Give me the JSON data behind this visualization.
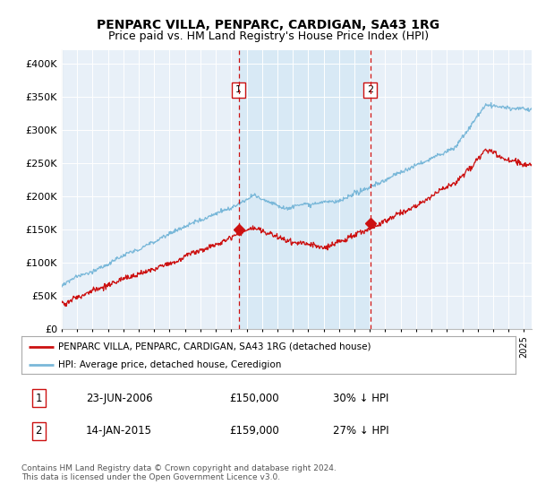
{
  "title": "PENPARC VILLA, PENPARC, CARDIGAN, SA43 1RG",
  "subtitle": "Price paid vs. HM Land Registry's House Price Index (HPI)",
  "xlim_start": 1995.0,
  "xlim_end": 2025.5,
  "ylim": [
    0,
    420000
  ],
  "yticks": [
    0,
    50000,
    100000,
    150000,
    200000,
    250000,
    300000,
    350000,
    400000
  ],
  "ytick_labels": [
    "£0",
    "£50K",
    "£100K",
    "£150K",
    "£200K",
    "£250K",
    "£300K",
    "£350K",
    "£400K"
  ],
  "sale1_date": 2006.48,
  "sale1_price": 150000,
  "sale1_label": "1",
  "sale2_date": 2015.04,
  "sale2_price": 159000,
  "sale2_label": "2",
  "hpi_color": "#7ab8d9",
  "price_color": "#cc1111",
  "vline_color": "#cc1111",
  "shade_color": "#d6e8f5",
  "background_color": "#e8f0f8",
  "legend_label_red": "PENPARC VILLA, PENPARC, CARDIGAN, SA43 1RG (detached house)",
  "legend_label_blue": "HPI: Average price, detached house, Ceredigion",
  "table_row1": [
    "1",
    "23-JUN-2006",
    "£150,000",
    "30% ↓ HPI"
  ],
  "table_row2": [
    "2",
    "14-JAN-2015",
    "£159,000",
    "27% ↓ HPI"
  ],
  "footer": "Contains HM Land Registry data © Crown copyright and database right 2024.\nThis data is licensed under the Open Government Licence v3.0.",
  "title_fontsize": 10,
  "subtitle_fontsize": 9
}
